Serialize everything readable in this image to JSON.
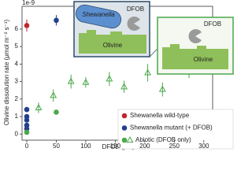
{
  "chart_data": {
    "type": "scatter",
    "offset_text": "1e-9",
    "x_label": "DFOB (μM)",
    "y_label": "Olivine dissolution rate (μmol m⁻² s⁻¹)",
    "xlim": [
      -8,
      315
    ],
    "xticks": [
      0,
      50,
      100,
      150,
      200,
      250,
      300
    ],
    "ylim": [
      -0.35,
      7.3
    ],
    "yticks": [
      0,
      1,
      2,
      3,
      4,
      5,
      6
    ],
    "legend": "lower right",
    "series": [
      {
        "name": "Shewanella wild-type",
        "color": "#c0272d",
        "marker": "circle",
        "x": [
          0
        ],
        "values": [
          6.2
        ],
        "errors": [
          0.35
        ]
      },
      {
        "name": "Shewanella mutant (+ DFOB)",
        "color": "#22408f",
        "marker": "circle",
        "x": [
          0,
          0,
          0,
          0,
          0,
          50
        ],
        "values": [
          1.4,
          1.0,
          0.8,
          0.5,
          0.3,
          6.5
        ],
        "errors": [
          0.15,
          0.1,
          0.1,
          0.1,
          0.1,
          0.3
        ]
      },
      {
        "name": "Abiotic (DFOB only)",
        "color": "#4aa84a",
        "markers": [
          "circle",
          "circle",
          "triangle",
          "triangle",
          "triangle",
          "triangle",
          "triangle",
          "triangle",
          "triangle",
          "triangle",
          "triangle"
        ],
        "x": [
          0,
          50,
          20,
          45,
          75,
          100,
          140,
          165,
          205,
          230,
          275
        ],
        "values": [
          0.1,
          1.25,
          1.5,
          2.2,
          3.0,
          2.95,
          3.15,
          2.7,
          3.5,
          2.55,
          3.6
        ],
        "errors": [
          0.05,
          0.1,
          0.3,
          0.35,
          0.4,
          0.3,
          0.4,
          0.35,
          0.5,
          0.4,
          0.4
        ]
      }
    ],
    "annotations": {
      "inset_left": {
        "organism": "Shewanella",
        "chelator": "DFOB",
        "mineral": "Olivine"
      },
      "inset_right": {
        "chelator": "DFOB",
        "mineral": "Olivine"
      }
    }
  }
}
